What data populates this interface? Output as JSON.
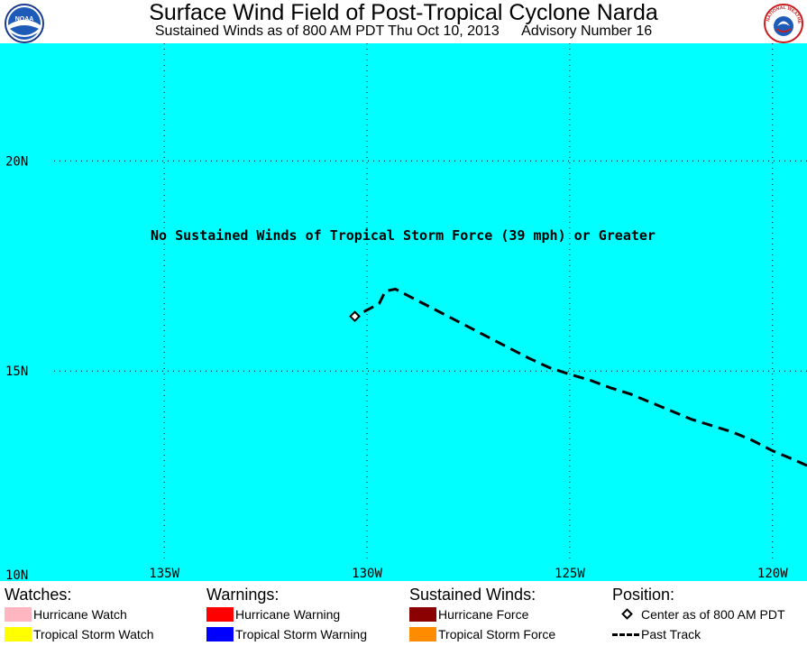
{
  "header": {
    "title": "Surface Wind Field of Post-Tropical Cyclone Narda",
    "subtitle_left": "Sustained Winds as of 800 AM PDT Thu Oct 10, 2013",
    "subtitle_right": "Advisory Number 16",
    "left_logo_text": "NOAA",
    "right_logo_text": "NATIONAL WEATHER SERVICE"
  },
  "map": {
    "background_color": "#00ffff",
    "message": "No Sustained Winds of Tropical Storm Force (39 mph) or Greater",
    "lat_labels": [
      {
        "lat": 20,
        "label": "20N"
      },
      {
        "lat": 15,
        "label": "15N"
      },
      {
        "lat": 10,
        "label": "10N"
      }
    ],
    "lon_labels": [
      {
        "lon": -135,
        "label": "135W"
      },
      {
        "lon": -130,
        "label": "130W"
      },
      {
        "lon": -125,
        "label": "125W"
      },
      {
        "lon": -120,
        "label": "120W"
      }
    ],
    "extent": {
      "lon_min": -139.05,
      "lon_max": -119.15,
      "lat_min": 10.0,
      "lat_max": 22.8
    },
    "center": {
      "lon": -130.3,
      "lat": 16.3
    },
    "past_track": [
      [
        -119.15,
        12.75
      ],
      [
        -119.5,
        12.9
      ],
      [
        -120.0,
        13.1
      ],
      [
        -120.5,
        13.35
      ],
      [
        -121.0,
        13.55
      ],
      [
        -121.5,
        13.7
      ],
      [
        -122.0,
        13.85
      ],
      [
        -122.5,
        14.05
      ],
      [
        -123.0,
        14.25
      ],
      [
        -123.5,
        14.45
      ],
      [
        -124.0,
        14.6
      ],
      [
        -124.5,
        14.78
      ],
      [
        -125.0,
        14.92
      ],
      [
        -125.5,
        15.08
      ],
      [
        -126.0,
        15.3
      ],
      [
        -126.5,
        15.55
      ],
      [
        -127.0,
        15.8
      ],
      [
        -127.5,
        16.05
      ],
      [
        -128.0,
        16.3
      ],
      [
        -128.5,
        16.55
      ],
      [
        -129.0,
        16.8
      ],
      [
        -129.3,
        16.95
      ],
      [
        -129.55,
        16.9
      ],
      [
        -129.7,
        16.6
      ],
      [
        -129.9,
        16.5
      ],
      [
        -130.3,
        16.3
      ]
    ],
    "track_color": "#000000"
  },
  "legend": {
    "watches": {
      "title": "Watches:",
      "items": [
        {
          "label": "Hurricane Watch",
          "color": "#ffb6c1"
        },
        {
          "label": "Tropical Storm Watch",
          "color": "#ffff00"
        }
      ]
    },
    "warnings": {
      "title": "Warnings:",
      "items": [
        {
          "label": "Hurricane Warning",
          "color": "#ff0000"
        },
        {
          "label": "Tropical Storm Warning",
          "color": "#0000ff"
        }
      ]
    },
    "winds": {
      "title": "Sustained Winds:",
      "items": [
        {
          "label": "Hurricane Force",
          "color": "#8b0000"
        },
        {
          "label": "Tropical Storm Force",
          "color": "#ff8c00"
        }
      ]
    },
    "position": {
      "title": "Position:",
      "items": [
        {
          "label": "Center as of 800 AM PDT",
          "icon": "diamond-marker-icon"
        },
        {
          "label": "Past Track",
          "icon": "dashed-line-icon"
        }
      ]
    }
  }
}
